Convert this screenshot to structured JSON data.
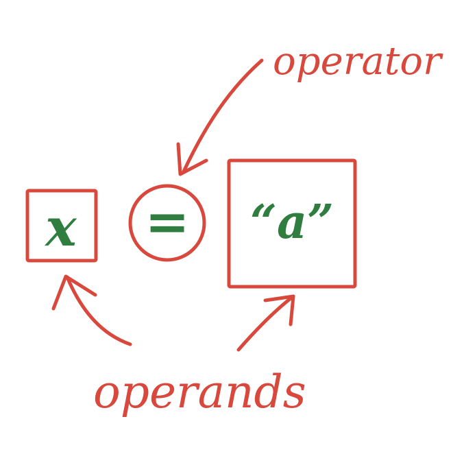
{
  "diagram": {
    "left_operand": "x",
    "operator": "=",
    "right_operand": "“a”",
    "operator_label": "operator",
    "operands_label": "operands"
  },
  "colors": {
    "annotation": "#d8483c",
    "content": "#2f7d3f",
    "background": "#ffffff"
  }
}
